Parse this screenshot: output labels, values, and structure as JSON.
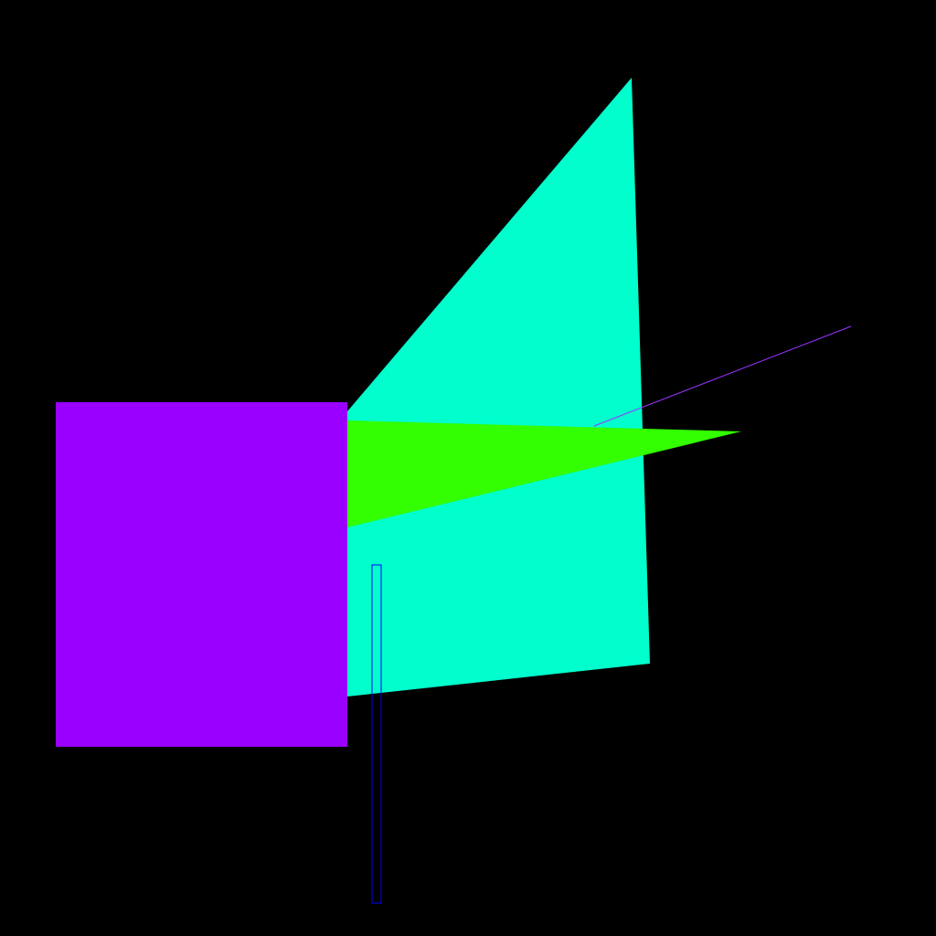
{
  "scene": {
    "background_color": "#000000",
    "shapes": [
      {
        "name": "cyan-quadrilateral",
        "kind": "polygon",
        "fill": "#00ffcc"
      },
      {
        "name": "purple-square",
        "kind": "rect",
        "fill": "#9900ff"
      },
      {
        "name": "green-triangle",
        "kind": "polygon",
        "fill": "#33ff00"
      },
      {
        "name": "violet-line",
        "kind": "line",
        "stroke": "#9933ff"
      },
      {
        "name": "blue-outline-bar",
        "kind": "rect-outline",
        "stroke": "#0000ff"
      }
    ]
  }
}
